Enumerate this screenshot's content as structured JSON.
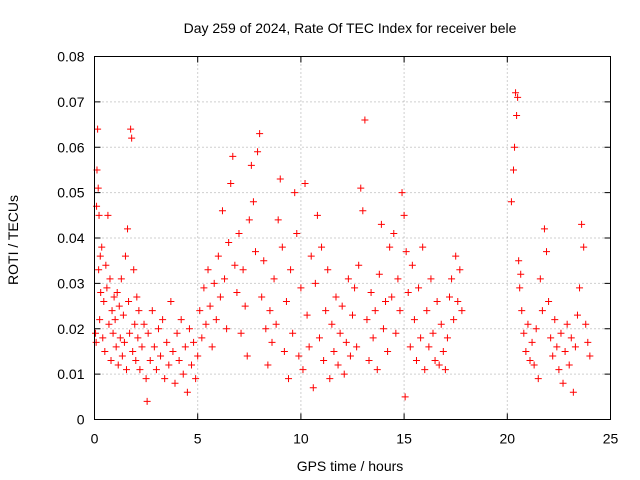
{
  "chart_data": {
    "type": "scatter",
    "title": "Day 259 of 2024, Rate Of TEC Index for receiver bele",
    "xlabel": "GPS time / hours",
    "ylabel": "ROTI / TECUs",
    "xlim": [
      0,
      25
    ],
    "ylim": [
      0,
      0.08
    ],
    "xticks": [
      0,
      5,
      10,
      15,
      20,
      25
    ],
    "xtick_labels": [
      "0",
      "5",
      "10",
      "15",
      "20",
      "25"
    ],
    "yticks": [
      0,
      0.01,
      0.02,
      0.03,
      0.04,
      0.05,
      0.06,
      0.07,
      0.08
    ],
    "ytick_labels": [
      "0",
      "0.01",
      "0.02",
      "0.03",
      "0.04",
      "0.05",
      "0.06",
      "0.07",
      "0.08"
    ],
    "grid": true,
    "marker": "plus",
    "marker_color": "#ff0000",
    "series": [
      {
        "name": "ROTI",
        "points": [
          [
            0.05,
            0.019
          ],
          [
            0.08,
            0.017
          ],
          [
            0.1,
            0.047
          ],
          [
            0.12,
            0.055
          ],
          [
            0.15,
            0.064
          ],
          [
            0.18,
            0.051
          ],
          [
            0.2,
            0.033
          ],
          [
            0.22,
            0.045
          ],
          [
            0.25,
            0.022
          ],
          [
            0.28,
            0.036
          ],
          [
            0.3,
            0.028
          ],
          [
            0.35,
            0.038
          ],
          [
            0.4,
            0.018
          ],
          [
            0.45,
            0.026
          ],
          [
            0.5,
            0.015
          ],
          [
            0.55,
            0.034
          ],
          [
            0.6,
            0.029
          ],
          [
            0.65,
            0.045
          ],
          [
            0.7,
            0.021
          ],
          [
            0.75,
            0.031
          ],
          [
            0.8,
            0.013
          ],
          [
            0.85,
            0.024
          ],
          [
            0.9,
            0.019
          ],
          [
            0.95,
            0.027
          ],
          [
            1.0,
            0.022
          ],
          [
            1.05,
            0.016
          ],
          [
            1.1,
            0.028
          ],
          [
            1.15,
            0.012
          ],
          [
            1.2,
            0.025
          ],
          [
            1.25,
            0.018
          ],
          [
            1.3,
            0.031
          ],
          [
            1.35,
            0.014
          ],
          [
            1.4,
            0.023
          ],
          [
            1.45,
            0.017
          ],
          [
            1.5,
            0.036
          ],
          [
            1.55,
            0.011
          ],
          [
            1.6,
            0.042
          ],
          [
            1.65,
            0.026
          ],
          [
            1.7,
            0.019
          ],
          [
            1.75,
            0.064
          ],
          [
            1.8,
            0.062
          ],
          [
            1.85,
            0.015
          ],
          [
            1.9,
            0.033
          ],
          [
            1.95,
            0.021
          ],
          [
            2.0,
            0.013
          ],
          [
            2.05,
            0.027
          ],
          [
            2.1,
            0.018
          ],
          [
            2.15,
            0.024
          ],
          [
            2.2,
            0.011
          ],
          [
            2.3,
            0.016
          ],
          [
            2.4,
            0.021
          ],
          [
            2.5,
            0.009
          ],
          [
            2.55,
            0.004
          ],
          [
            2.6,
            0.019
          ],
          [
            2.7,
            0.013
          ],
          [
            2.8,
            0.024
          ],
          [
            2.9,
            0.016
          ],
          [
            3.0,
            0.011
          ],
          [
            3.1,
            0.02
          ],
          [
            3.2,
            0.014
          ],
          [
            3.3,
            0.022
          ],
          [
            3.4,
            0.009
          ],
          [
            3.5,
            0.017
          ],
          [
            3.6,
            0.012
          ],
          [
            3.7,
            0.026
          ],
          [
            3.8,
            0.015
          ],
          [
            3.9,
            0.008
          ],
          [
            4.0,
            0.019
          ],
          [
            4.1,
            0.013
          ],
          [
            4.2,
            0.022
          ],
          [
            4.3,
            0.01
          ],
          [
            4.4,
            0.016
          ],
          [
            4.5,
            0.006
          ],
          [
            4.6,
            0.02
          ],
          [
            4.7,
            0.012
          ],
          [
            4.8,
            0.017
          ],
          [
            4.9,
            0.009
          ],
          [
            5.0,
            0.014
          ],
          [
            5.1,
            0.024
          ],
          [
            5.2,
            0.018
          ],
          [
            5.3,
            0.029
          ],
          [
            5.4,
            0.021
          ],
          [
            5.5,
            0.033
          ],
          [
            5.6,
            0.025
          ],
          [
            5.7,
            0.016
          ],
          [
            5.8,
            0.03
          ],
          [
            5.9,
            0.022
          ],
          [
            6.0,
            0.036
          ],
          [
            6.1,
            0.027
          ],
          [
            6.2,
            0.046
          ],
          [
            6.3,
            0.031
          ],
          [
            6.4,
            0.02
          ],
          [
            6.5,
            0.039
          ],
          [
            6.6,
            0.052
          ],
          [
            6.7,
            0.058
          ],
          [
            6.8,
            0.034
          ],
          [
            6.9,
            0.028
          ],
          [
            7.0,
            0.041
          ],
          [
            7.1,
            0.019
          ],
          [
            7.2,
            0.033
          ],
          [
            7.3,
            0.025
          ],
          [
            7.4,
            0.014
          ],
          [
            7.5,
            0.044
          ],
          [
            7.6,
            0.056
          ],
          [
            7.7,
            0.048
          ],
          [
            7.8,
            0.037
          ],
          [
            7.9,
            0.059
          ],
          [
            8.0,
            0.063
          ],
          [
            8.1,
            0.027
          ],
          [
            8.2,
            0.035
          ],
          [
            8.3,
            0.02
          ],
          [
            8.4,
            0.012
          ],
          [
            8.5,
            0.024
          ],
          [
            8.6,
            0.017
          ],
          [
            8.7,
            0.031
          ],
          [
            8.8,
            0.021
          ],
          [
            8.9,
            0.044
          ],
          [
            9.0,
            0.053
          ],
          [
            9.1,
            0.038
          ],
          [
            9.2,
            0.015
          ],
          [
            9.3,
            0.026
          ],
          [
            9.4,
            0.009
          ],
          [
            9.5,
            0.033
          ],
          [
            9.6,
            0.019
          ],
          [
            9.7,
            0.05
          ],
          [
            9.8,
            0.041
          ],
          [
            9.9,
            0.014
          ],
          [
            10.0,
            0.029
          ],
          [
            10.1,
            0.011
          ],
          [
            10.2,
            0.052
          ],
          [
            10.3,
            0.023
          ],
          [
            10.4,
            0.016
          ],
          [
            10.5,
            0.036
          ],
          [
            10.6,
            0.007
          ],
          [
            10.7,
            0.03
          ],
          [
            10.8,
            0.045
          ],
          [
            10.9,
            0.018
          ],
          [
            11.0,
            0.038
          ],
          [
            11.1,
            0.013
          ],
          [
            11.2,
            0.024
          ],
          [
            11.3,
            0.033
          ],
          [
            11.4,
            0.009
          ],
          [
            11.5,
            0.021
          ],
          [
            11.6,
            0.015
          ],
          [
            11.7,
            0.027
          ],
          [
            11.8,
            0.012
          ],
          [
            11.9,
            0.019
          ],
          [
            12.0,
            0.025
          ],
          [
            12.1,
            0.01
          ],
          [
            12.2,
            0.017
          ],
          [
            12.3,
            0.031
          ],
          [
            12.4,
            0.014
          ],
          [
            12.5,
            0.023
          ],
          [
            12.6,
            0.029
          ],
          [
            12.7,
            0.016
          ],
          [
            12.8,
            0.034
          ],
          [
            12.9,
            0.051
          ],
          [
            13.0,
            0.046
          ],
          [
            13.1,
            0.066
          ],
          [
            13.2,
            0.022
          ],
          [
            13.3,
            0.013
          ],
          [
            13.4,
            0.028
          ],
          [
            13.5,
            0.018
          ],
          [
            13.6,
            0.024
          ],
          [
            13.7,
            0.011
          ],
          [
            13.8,
            0.032
          ],
          [
            13.9,
            0.043
          ],
          [
            14.0,
            0.02
          ],
          [
            14.1,
            0.026
          ],
          [
            14.2,
            0.015
          ],
          [
            14.3,
            0.038
          ],
          [
            14.4,
            0.027
          ],
          [
            14.5,
            0.041
          ],
          [
            14.6,
            0.019
          ],
          [
            14.7,
            0.031
          ],
          [
            14.8,
            0.024
          ],
          [
            14.9,
            0.05
          ],
          [
            15.0,
            0.045
          ],
          [
            15.05,
            0.005
          ],
          [
            15.1,
            0.037
          ],
          [
            15.2,
            0.028
          ],
          [
            15.3,
            0.016
          ],
          [
            15.4,
            0.034
          ],
          [
            15.5,
            0.022
          ],
          [
            15.6,
            0.013
          ],
          [
            15.7,
            0.029
          ],
          [
            15.8,
            0.018
          ],
          [
            15.9,
            0.038
          ],
          [
            16.0,
            0.011
          ],
          [
            16.1,
            0.024
          ],
          [
            16.2,
            0.016
          ],
          [
            16.3,
            0.031
          ],
          [
            16.4,
            0.019
          ],
          [
            16.5,
            0.013
          ],
          [
            16.6,
            0.026
          ],
          [
            16.7,
            0.012
          ],
          [
            16.8,
            0.021
          ],
          [
            16.9,
            0.015
          ],
          [
            17.0,
            0.011
          ],
          [
            17.1,
            0.018
          ],
          [
            17.2,
            0.027
          ],
          [
            17.3,
            0.031
          ],
          [
            17.4,
            0.022
          ],
          [
            17.5,
            0.036
          ],
          [
            17.6,
            0.026
          ],
          [
            17.7,
            0.033
          ],
          [
            17.8,
            0.024
          ],
          [
            20.2,
            0.048
          ],
          [
            20.3,
            0.055
          ],
          [
            20.35,
            0.06
          ],
          [
            20.4,
            0.072
          ],
          [
            20.45,
            0.067
          ],
          [
            20.5,
            0.071
          ],
          [
            20.55,
            0.035
          ],
          [
            20.6,
            0.029
          ],
          [
            20.65,
            0.032
          ],
          [
            20.7,
            0.024
          ],
          [
            20.8,
            0.019
          ],
          [
            20.9,
            0.015
          ],
          [
            21.0,
            0.021
          ],
          [
            21.1,
            0.013
          ],
          [
            21.2,
            0.017
          ],
          [
            21.3,
            0.012
          ],
          [
            21.4,
            0.02
          ],
          [
            21.5,
            0.009
          ],
          [
            21.6,
            0.031
          ],
          [
            21.7,
            0.024
          ],
          [
            21.8,
            0.042
          ],
          [
            21.9,
            0.037
          ],
          [
            22.0,
            0.026
          ],
          [
            22.1,
            0.018
          ],
          [
            22.2,
            0.014
          ],
          [
            22.3,
            0.022
          ],
          [
            22.4,
            0.016
          ],
          [
            22.5,
            0.011
          ],
          [
            22.6,
            0.019
          ],
          [
            22.7,
            0.008
          ],
          [
            22.8,
            0.015
          ],
          [
            22.9,
            0.021
          ],
          [
            23.0,
            0.012
          ],
          [
            23.1,
            0.018
          ],
          [
            23.2,
            0.006
          ],
          [
            23.3,
            0.016
          ],
          [
            23.4,
            0.023
          ],
          [
            23.5,
            0.029
          ],
          [
            23.6,
            0.043
          ],
          [
            23.7,
            0.038
          ],
          [
            23.8,
            0.021
          ],
          [
            23.9,
            0.017
          ],
          [
            24.0,
            0.014
          ]
        ]
      }
    ]
  }
}
